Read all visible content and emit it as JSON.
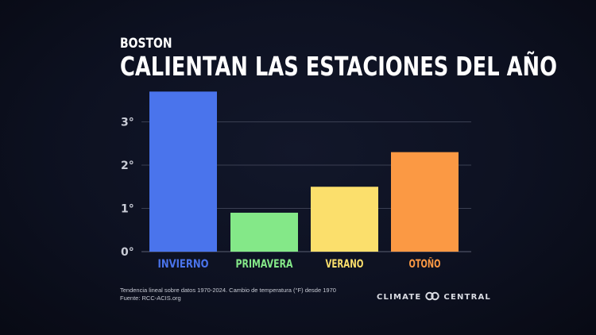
{
  "header": {
    "city": "BOSTON",
    "title": "CALIENTAN LAS ESTACIONES DEL AÑO"
  },
  "chart_data": {
    "type": "bar",
    "title": "CALIENTAN LAS ESTACIONES DEL AÑO",
    "subtitle": "BOSTON",
    "categories": [
      "INVIERNO",
      "PRIMAVERA",
      "VERANO",
      "OTOÑO"
    ],
    "values": [
      3.7,
      0.9,
      1.5,
      2.3
    ],
    "colors": [
      "#4a74ec",
      "#84e888",
      "#fbdf6c",
      "#fb9944"
    ],
    "label_colors": [
      "#4a74ec",
      "#84e888",
      "#fbdf6c",
      "#fb9944"
    ],
    "yticks": [
      0,
      1,
      2,
      3
    ],
    "ytick_labels": [
      "0°",
      "1°",
      "2°",
      "3°"
    ],
    "ylim": [
      0,
      3.9
    ],
    "xlabel": "",
    "ylabel": "",
    "grid": true
  },
  "footer": {
    "note_line1": "Tendencia lineal sobre datos 1970-2024. Cambio de temperatura (°F) desde 1970",
    "note_line2": "Fuente: RCC-ACIS.org",
    "brand_left": "CLIMATE",
    "brand_right": "CENTRAL"
  }
}
